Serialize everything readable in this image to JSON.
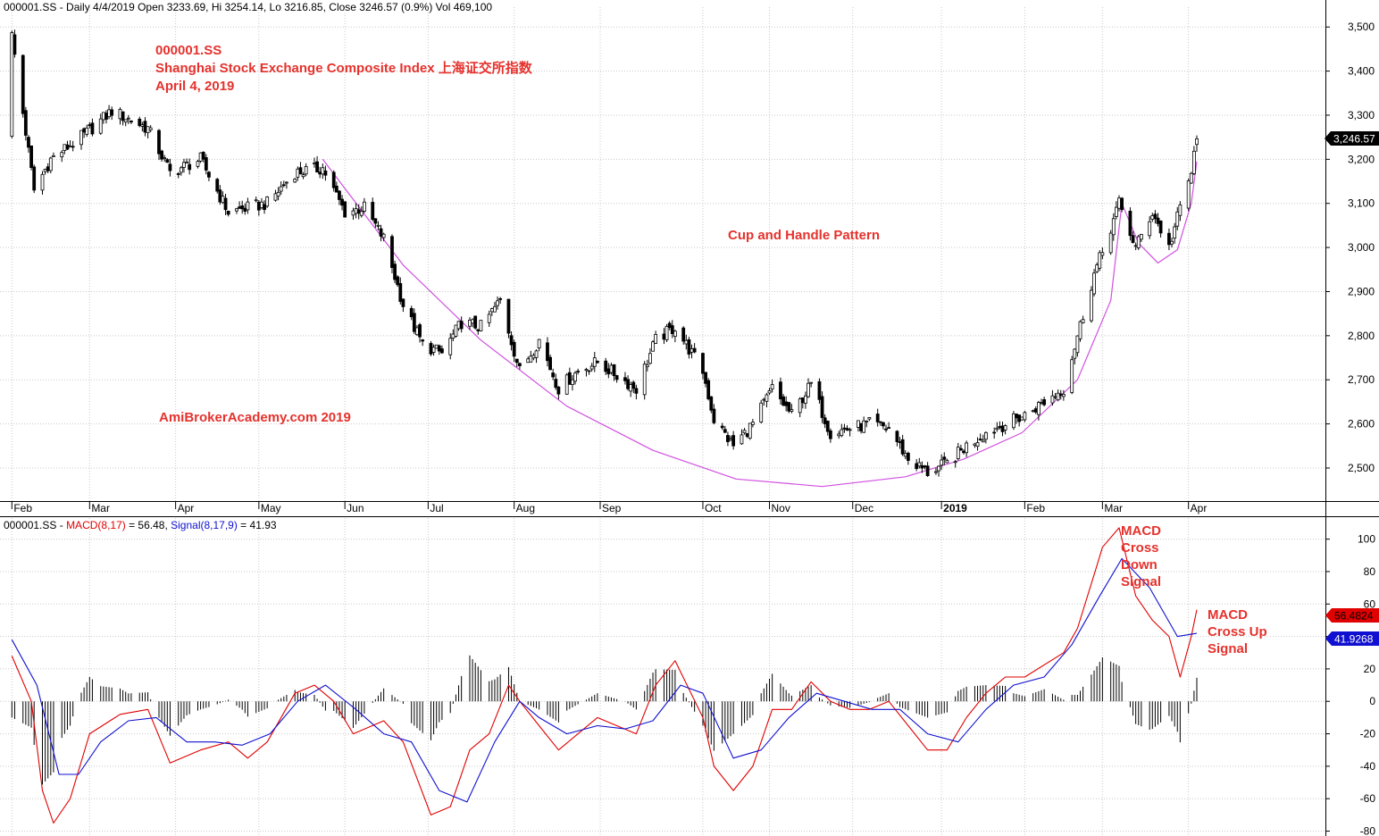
{
  "price_panel": {
    "header": "000001.SS - Daily 4/4/2019 Open 3233.69, Hi 3254.14, Lo 3216.85, Close 3246.57 (0.9%) Vol 469,100",
    "last_price_tag": "3,246.57",
    "annotations": {
      "title_line1": "000001.SS",
      "title_line2": "Shanghai Stock Exchange Composite Index  上海证交所指数",
      "title_line3": "April 4, 2019",
      "pattern": "Cup and Handle Pattern",
      "watermark": "AmiBrokerAcademy.com   2019"
    }
  },
  "macd_panel": {
    "header_symbol": "000001.SS - ",
    "header_macd": "MACD(8,17)",
    "header_macd_value": " = 56.48, ",
    "header_signal": "Signal(8,17,9)",
    "header_signal_value": " = 41.93",
    "macd_tag": "56.4824",
    "signal_tag": "41.9268",
    "annotations": {
      "cross_down": [
        "MACD",
        "Cross",
        "Down",
        "Signal"
      ],
      "cross_up": [
        "MACD",
        "Cross Up",
        "Signal"
      ]
    }
  },
  "colors": {
    "macd": "#e00000",
    "signal": "#1010d0",
    "cup": "#d050e0",
    "annotation": "#e5322d",
    "grid": "#c8c8c8"
  },
  "chart_data": [
    {
      "type": "candlestick",
      "title": "000001.SS",
      "x_tick_labels": [
        "Feb",
        "Mar",
        "Apr",
        "May",
        "Jun",
        "Jul",
        "Aug",
        "Sep",
        "Oct",
        "Nov",
        "Dec",
        "2019",
        "Feb",
        "Mar",
        "Apr"
      ],
      "y_tick_labels": [
        "3,500",
        "3,400",
        "3,300",
        "3,200",
        "3,100",
        "3,000",
        "2,900",
        "2,800",
        "2,700",
        "2,600",
        "2,500"
      ],
      "ylim": [
        2425,
        3545
      ],
      "grid": true,
      "close_path": [
        [
          "2018-02-01",
          3480
        ],
        [
          "2018-02-09",
          3130
        ],
        [
          "2018-02-15",
          3200
        ],
        [
          "2018-02-28",
          3260
        ],
        [
          "2018-03-09",
          3310
        ],
        [
          "2018-03-22",
          3270
        ],
        [
          "2018-03-30",
          3170
        ],
        [
          "2018-04-10",
          3200
        ],
        [
          "2018-04-20",
          3080
        ],
        [
          "2018-05-04",
          3100
        ],
        [
          "2018-05-14",
          3170
        ],
        [
          "2018-05-24",
          3180
        ],
        [
          "2018-06-01",
          3080
        ],
        [
          "2018-06-08",
          3090
        ],
        [
          "2018-06-15",
          3020
        ],
        [
          "2018-06-22",
          2870
        ],
        [
          "2018-06-29",
          2780
        ],
        [
          "2018-07-06",
          2760
        ],
        [
          "2018-07-13",
          2830
        ],
        [
          "2018-07-20",
          2820
        ],
        [
          "2018-07-27",
          2880
        ],
        [
          "2018-08-03",
          2720
        ],
        [
          "2018-08-10",
          2790
        ],
        [
          "2018-08-17",
          2680
        ],
        [
          "2018-08-24",
          2720
        ],
        [
          "2018-08-31",
          2740
        ],
        [
          "2018-09-07",
          2710
        ],
        [
          "2018-09-14",
          2680
        ],
        [
          "2018-09-21",
          2790
        ],
        [
          "2018-09-28",
          2820
        ],
        [
          "2018-10-08",
          2720
        ],
        [
          "2018-10-12",
          2610
        ],
        [
          "2018-10-19",
          2550
        ],
        [
          "2018-10-26",
          2600
        ],
        [
          "2018-11-02",
          2680
        ],
        [
          "2018-11-09",
          2620
        ],
        [
          "2018-11-16",
          2690
        ],
        [
          "2018-11-23",
          2580
        ],
        [
          "2018-11-30",
          2590
        ],
        [
          "2018-12-07",
          2600
        ],
        [
          "2018-12-14",
          2590
        ],
        [
          "2018-12-21",
          2520
        ],
        [
          "2018-12-28",
          2490
        ],
        [
          "2019-01-04",
          2510
        ],
        [
          "2019-01-11",
          2550
        ],
        [
          "2019-01-18",
          2580
        ],
        [
          "2019-01-25",
          2600
        ],
        [
          "2019-02-01",
          2620
        ],
        [
          "2019-02-15",
          2680
        ],
        [
          "2019-02-20",
          2800
        ],
        [
          "2019-02-26",
          2940
        ],
        [
          "2019-03-01",
          2990
        ],
        [
          "2019-03-07",
          3100
        ],
        [
          "2019-03-13",
          3000
        ],
        [
          "2019-03-19",
          3080
        ],
        [
          "2019-03-25",
          3000
        ],
        [
          "2019-03-29",
          3090
        ],
        [
          "2019-04-02",
          3170
        ],
        [
          "2019-04-04",
          3246.57
        ]
      ],
      "last_bar": {
        "date": "2019-04-04",
        "open": 3233.69,
        "high": 3254.14,
        "low": 3216.85,
        "close": 3246.57
      }
    },
    {
      "type": "line",
      "title": "MACD(8,17), Signal(8,17,9)",
      "x_tick_labels": [],
      "y_tick_labels": [
        "100",
        "80",
        "60",
        "40",
        "20",
        "0",
        "-20",
        "-40",
        "-60",
        "-80"
      ],
      "ylim": [
        -83,
        113
      ],
      "grid": true,
      "series": [
        {
          "name": "MACD(8,17)",
          "color": "#e00000",
          "points": [
            [
              "2018-02-01",
              28
            ],
            [
              "2018-02-08",
              0
            ],
            [
              "2018-02-12",
              -55
            ],
            [
              "2018-02-16",
              -75
            ],
            [
              "2018-02-22",
              -60
            ],
            [
              "2018-03-01",
              -20
            ],
            [
              "2018-03-12",
              -8
            ],
            [
              "2018-03-22",
              -5
            ],
            [
              "2018-03-30",
              -38
            ],
            [
              "2018-04-10",
              -30
            ],
            [
              "2018-04-20",
              -25
            ],
            [
              "2018-04-27",
              -35
            ],
            [
              "2018-05-04",
              -25
            ],
            [
              "2018-05-14",
              5
            ],
            [
              "2018-05-21",
              10
            ],
            [
              "2018-05-28",
              0
            ],
            [
              "2018-06-04",
              -20
            ],
            [
              "2018-06-15",
              -12
            ],
            [
              "2018-06-22",
              -25
            ],
            [
              "2018-07-02",
              -70
            ],
            [
              "2018-07-09",
              -65
            ],
            [
              "2018-07-16",
              -30
            ],
            [
              "2018-07-23",
              -20
            ],
            [
              "2018-07-30",
              10
            ],
            [
              "2018-08-03",
              0
            ],
            [
              "2018-08-10",
              -15
            ],
            [
              "2018-08-17",
              -30
            ],
            [
              "2018-08-24",
              -20
            ],
            [
              "2018-08-31",
              -10
            ],
            [
              "2018-09-07",
              -15
            ],
            [
              "2018-09-14",
              -20
            ],
            [
              "2018-09-21",
              10
            ],
            [
              "2018-09-28",
              25
            ],
            [
              "2018-10-08",
              -10
            ],
            [
              "2018-10-12",
              -40
            ],
            [
              "2018-10-19",
              -55
            ],
            [
              "2018-10-26",
              -40
            ],
            [
              "2018-11-02",
              -5
            ],
            [
              "2018-11-09",
              -5
            ],
            [
              "2018-11-16",
              12
            ],
            [
              "2018-11-23",
              0
            ],
            [
              "2018-11-30",
              -5
            ],
            [
              "2018-12-07",
              -5
            ],
            [
              "2018-12-14",
              0
            ],
            [
              "2018-12-21",
              -15
            ],
            [
              "2018-12-28",
              -30
            ],
            [
              "2019-01-04",
              -30
            ],
            [
              "2019-01-11",
              -10
            ],
            [
              "2019-01-18",
              5
            ],
            [
              "2019-01-25",
              15
            ],
            [
              "2019-02-01",
              15
            ],
            [
              "2019-02-15",
              30
            ],
            [
              "2019-02-20",
              45
            ],
            [
              "2019-02-26",
              78
            ],
            [
              "2019-03-01",
              95
            ],
            [
              "2019-03-07",
              107
            ],
            [
              "2019-03-13",
              65
            ],
            [
              "2019-03-19",
              50
            ],
            [
              "2019-03-25",
              40
            ],
            [
              "2019-03-29",
              15
            ],
            [
              "2019-04-02",
              40
            ],
            [
              "2019-04-04",
              56.48
            ]
          ]
        },
        {
          "name": "Signal(8,17,9)",
          "color": "#1010d0",
          "points": [
            [
              "2018-02-01",
              38
            ],
            [
              "2018-02-10",
              10
            ],
            [
              "2018-02-18",
              -45
            ],
            [
              "2018-02-25",
              -45
            ],
            [
              "2018-03-05",
              -25
            ],
            [
              "2018-03-15",
              -12
            ],
            [
              "2018-03-25",
              -10
            ],
            [
              "2018-04-05",
              -25
            ],
            [
              "2018-04-15",
              -25
            ],
            [
              "2018-04-25",
              -27
            ],
            [
              "2018-05-05",
              -20
            ],
            [
              "2018-05-15",
              0
            ],
            [
              "2018-05-25",
              10
            ],
            [
              "2018-06-05",
              -5
            ],
            [
              "2018-06-15",
              -20
            ],
            [
              "2018-06-25",
              -25
            ],
            [
              "2018-07-05",
              -55
            ],
            [
              "2018-07-15",
              -62
            ],
            [
              "2018-07-25",
              -25
            ],
            [
              "2018-08-03",
              0
            ],
            [
              "2018-08-10",
              -10
            ],
            [
              "2018-08-20",
              -20
            ],
            [
              "2018-08-31",
              -15
            ],
            [
              "2018-09-10",
              -17
            ],
            [
              "2018-09-20",
              -12
            ],
            [
              "2018-09-30",
              10
            ],
            [
              "2018-10-08",
              5
            ],
            [
              "2018-10-19",
              -35
            ],
            [
              "2018-10-29",
              -30
            ],
            [
              "2018-11-08",
              -10
            ],
            [
              "2018-11-18",
              5
            ],
            [
              "2018-11-28",
              0
            ],
            [
              "2018-12-08",
              -5
            ],
            [
              "2018-12-18",
              -5
            ],
            [
              "2018-12-28",
              -20
            ],
            [
              "2019-01-08",
              -25
            ],
            [
              "2019-01-18",
              -5
            ],
            [
              "2019-01-28",
              10
            ],
            [
              "2019-02-08",
              15
            ],
            [
              "2019-02-18",
              35
            ],
            [
              "2019-02-28",
              65
            ],
            [
              "2019-03-08",
              88
            ],
            [
              "2019-03-18",
              70
            ],
            [
              "2019-03-28",
              40
            ],
            [
              "2019-04-04",
              41.93
            ]
          ]
        }
      ]
    }
  ]
}
